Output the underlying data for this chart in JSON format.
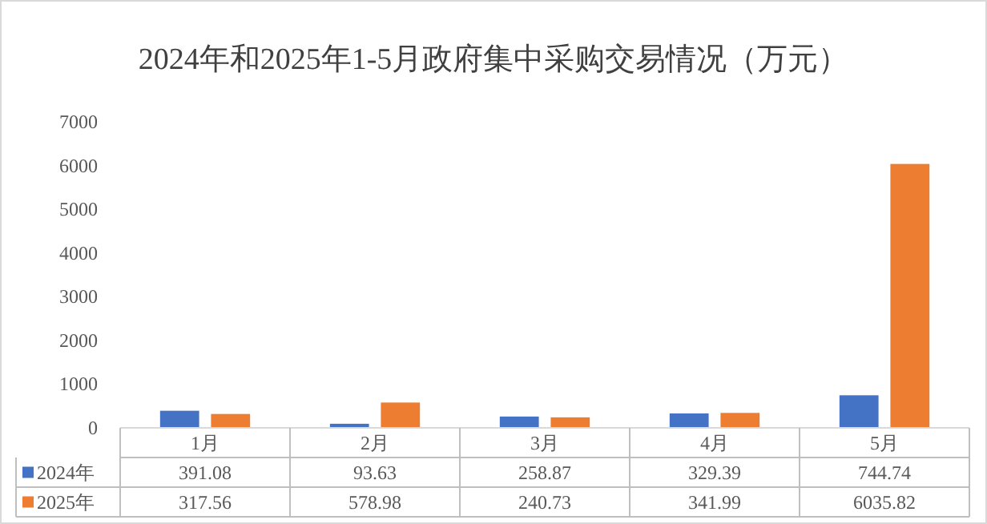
{
  "chart_data": {
    "type": "bar",
    "title": "2024年和2025年1-5月政府集中采购交易情况（万元）",
    "categories": [
      "1月",
      "2月",
      "3月",
      "4月",
      "5月"
    ],
    "series": [
      {
        "name": "2024年",
        "color": "#4472c4",
        "values": [
          391.08,
          93.63,
          258.87,
          329.39,
          744.74
        ]
      },
      {
        "name": "2025年",
        "color": "#ed7d31",
        "values": [
          317.56,
          578.98,
          240.73,
          341.99,
          6035.82
        ]
      }
    ],
    "ylim": [
      0,
      7000
    ],
    "yticks": [
      0,
      1000,
      2000,
      3000,
      4000,
      5000,
      6000,
      7000
    ],
    "data_labels": true,
    "legend": "bottom",
    "grid": false
  }
}
